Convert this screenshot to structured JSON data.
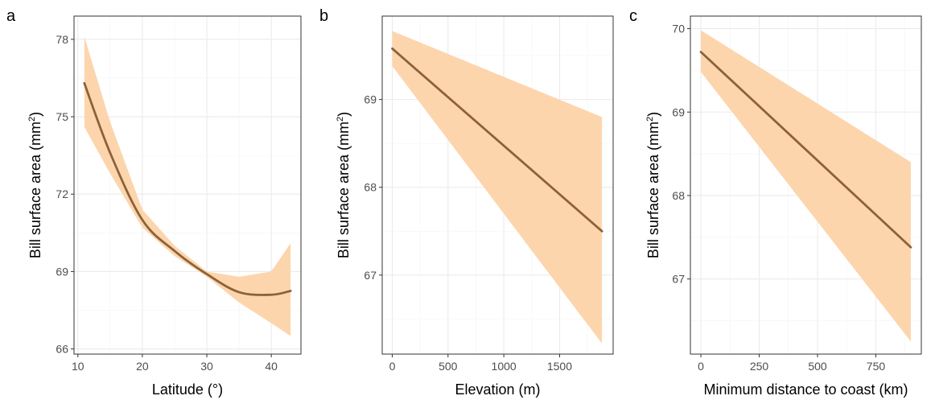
{
  "colors": {
    "line": "#8c6239",
    "ribbon": "#fdd5ad",
    "grid": "#ebebeb",
    "border": "#333333"
  },
  "chart_data": [
    {
      "panel": "a",
      "type": "line",
      "xlabel": "Latitude (°)",
      "ylabel_main": "Bill surface area  (mm",
      "ylabel_sup": "2",
      "ylabel_close": ")",
      "xlim": [
        9.4,
        44.6
      ],
      "ylim": [
        65.8,
        78.9
      ],
      "xticks": [
        10,
        20,
        30,
        40
      ],
      "yticks": [
        66,
        69,
        72,
        75,
        78
      ],
      "series": [
        {
          "x": [
            11,
            15,
            20,
            25,
            30,
            35,
            40,
            43
          ],
          "y": [
            76.3,
            73.6,
            71.0,
            69.8,
            68.9,
            68.2,
            68.1,
            68.25
          ],
          "lower": [
            74.6,
            72.8,
            70.7,
            69.6,
            68.8,
            67.8,
            67.0,
            66.5
          ],
          "upper": [
            78.1,
            74.8,
            71.4,
            70.0,
            69.0,
            68.8,
            69.0,
            70.1
          ]
        }
      ]
    },
    {
      "panel": "b",
      "type": "line",
      "xlabel": "Elevation (m)",
      "ylabel_main": "Bill surface area (mm",
      "ylabel_sup": "2",
      "ylabel_close": ")",
      "xlim": [
        -90,
        1980
      ],
      "ylim": [
        66.1,
        69.95
      ],
      "xticks": [
        0,
        500,
        1000,
        1500
      ],
      "yticks": [
        67,
        68,
        69
      ],
      "series": [
        {
          "x": [
            0,
            1880
          ],
          "y": [
            69.58,
            67.5
          ],
          "lower": [
            69.38,
            66.22
          ],
          "upper": [
            69.78,
            68.8
          ]
        }
      ]
    },
    {
      "panel": "c",
      "type": "line",
      "xlabel": "Minimum distance to coast (km)",
      "ylabel_main": "Bill surface area (mm",
      "ylabel_sup": "2",
      "ylabel_close": ")",
      "xlim": [
        -45,
        945
      ],
      "ylim": [
        66.1,
        70.15
      ],
      "xticks": [
        0,
        250,
        500,
        750
      ],
      "yticks": [
        67,
        68,
        69,
        70
      ],
      "series": [
        {
          "x": [
            0,
            900
          ],
          "y": [
            69.72,
            67.38
          ],
          "lower": [
            69.48,
            66.25
          ],
          "upper": [
            69.98,
            68.4
          ]
        }
      ]
    }
  ]
}
